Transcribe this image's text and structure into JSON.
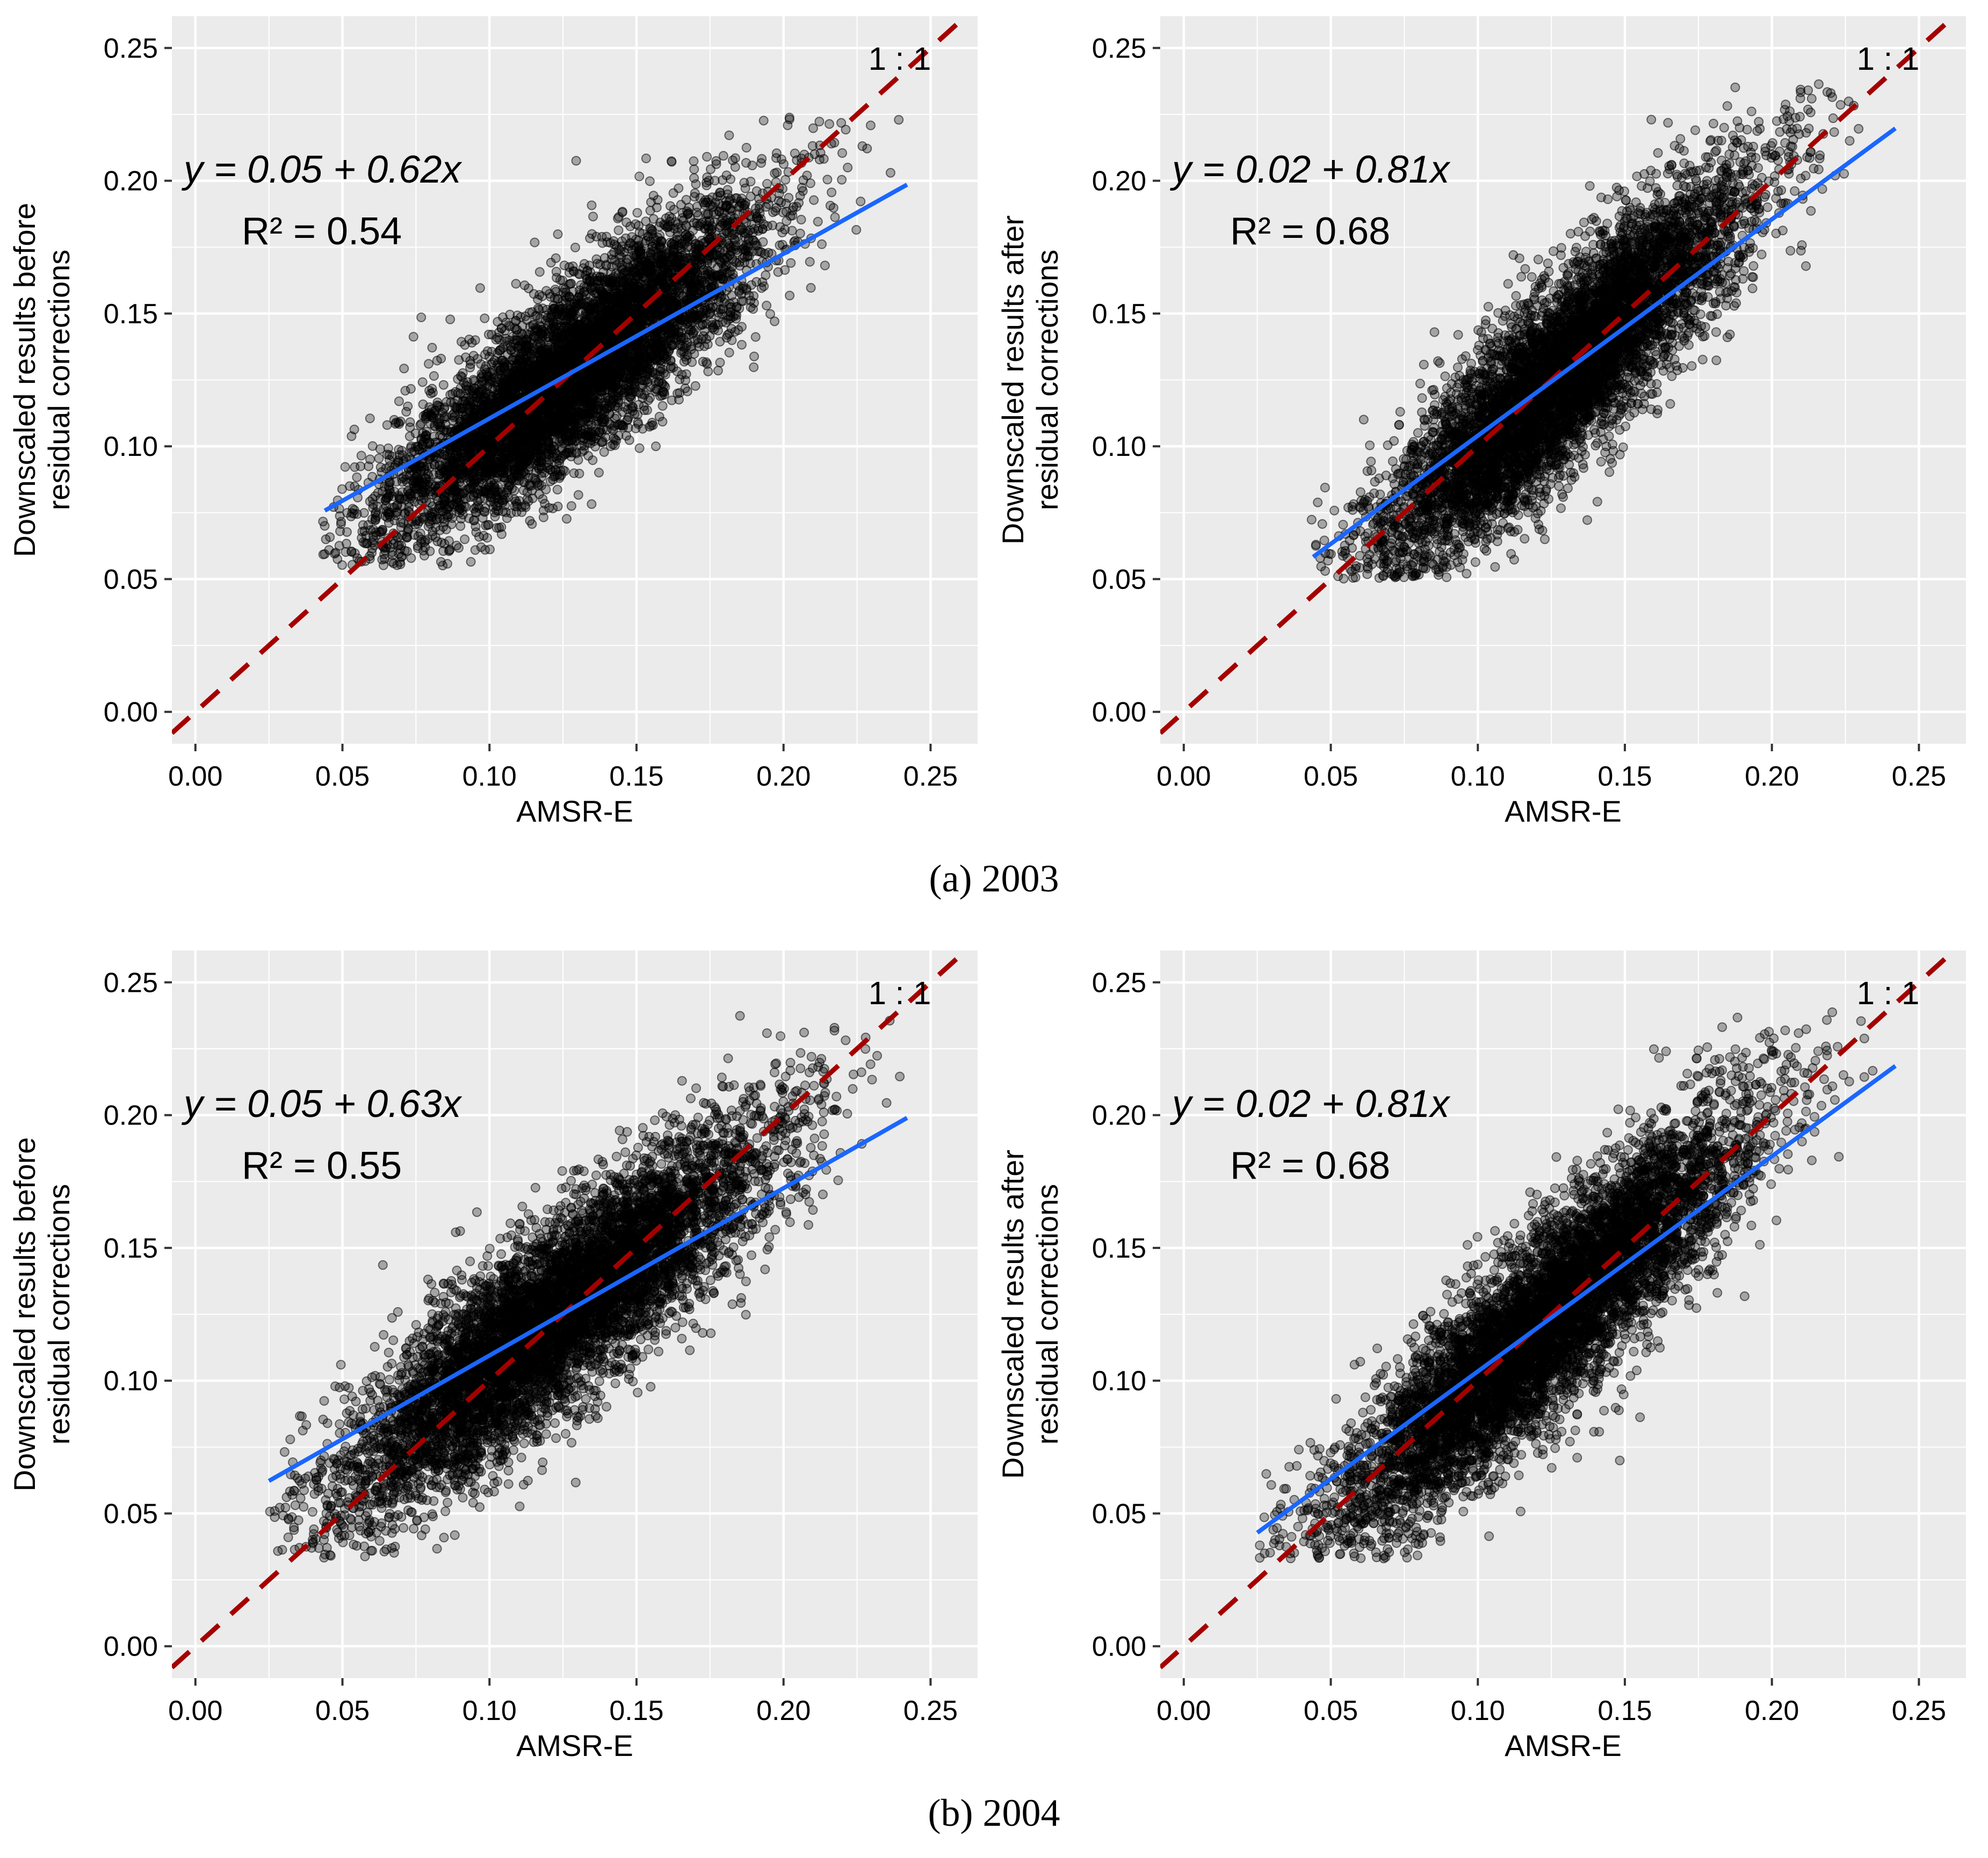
{
  "figure": {
    "captions": [
      "(a) 2003",
      "(b) 2004"
    ]
  },
  "chart_data": [
    {
      "type": "scatter",
      "panel": "(a) 2003 left",
      "xlabel": "AMSR-E",
      "ylabel": [
        "Downscaled results before",
        "residual corrections"
      ],
      "xlim": [
        -0.008,
        0.266
      ],
      "ylim": [
        -0.012,
        0.262
      ],
      "xticks": [
        0.0,
        0.05,
        0.1,
        0.15,
        0.2,
        0.25
      ],
      "yticks": [
        0.0,
        0.05,
        0.1,
        0.15,
        0.2,
        0.25
      ],
      "tick_labels": [
        "0.00",
        "0.05",
        "0.10",
        "0.15",
        "0.20",
        "0.25"
      ],
      "equation": "y = 0.05 + 0.62x",
      "r2": "R² = 0.54",
      "identity_label": "1 : 1",
      "fit": {
        "intercept": 0.0485,
        "slope": 0.62,
        "x_range": [
          0.044,
          0.242
        ]
      },
      "cloud": {
        "x_mean": 0.128,
        "x_sd": 0.032,
        "resid_sd": 0.017,
        "x_min": 0.043,
        "x_max": 0.243,
        "y_min": 0.055,
        "y_max": 0.225
      },
      "point_count": 6500,
      "seed": 11,
      "colors": {
        "fit": "#1a66ff",
        "identity": "#a50000",
        "points": "rgba(0,0,0,0.3)",
        "panel": "#ebebeb"
      }
    },
    {
      "type": "scatter",
      "panel": "(a) 2003 right",
      "xlabel": "AMSR-E",
      "ylabel": [
        "Downscaled results after",
        "residual corrections"
      ],
      "xlim": [
        -0.008,
        0.266
      ],
      "ylim": [
        -0.012,
        0.262
      ],
      "xticks": [
        0.0,
        0.05,
        0.1,
        0.15,
        0.2,
        0.25
      ],
      "yticks": [
        0.0,
        0.05,
        0.1,
        0.15,
        0.2,
        0.25
      ],
      "tick_labels": [
        "0.00",
        "0.05",
        "0.10",
        "0.15",
        "0.20",
        "0.25"
      ],
      "equation": "y = 0.02 + 0.81x",
      "r2": "R² = 0.68",
      "identity_label": "1 : 1",
      "fit": {
        "intercept": 0.0225,
        "slope": 0.815,
        "x_range": [
          0.044,
          0.242
        ]
      },
      "cloud": {
        "x_mean": 0.128,
        "x_sd": 0.032,
        "resid_sd": 0.018,
        "x_min": 0.043,
        "x_max": 0.243,
        "y_min": 0.05,
        "y_max": 0.238
      },
      "point_count": 6500,
      "seed": 23,
      "colors": {
        "fit": "#1a66ff",
        "identity": "#a50000",
        "points": "rgba(0,0,0,0.3)",
        "panel": "#ebebeb"
      }
    },
    {
      "type": "scatter",
      "panel": "(b) 2004 left",
      "xlabel": "AMSR-E",
      "ylabel": [
        "Downscaled results before",
        "residual corrections"
      ],
      "xlim": [
        -0.008,
        0.266
      ],
      "ylim": [
        -0.012,
        0.262
      ],
      "xticks": [
        0.0,
        0.05,
        0.1,
        0.15,
        0.2,
        0.25
      ],
      "yticks": [
        0.0,
        0.05,
        0.1,
        0.15,
        0.2,
        0.25
      ],
      "tick_labels": [
        "0.00",
        "0.05",
        "0.10",
        "0.15",
        "0.20",
        "0.25"
      ],
      "equation": "y = 0.05 + 0.63x",
      "r2": "R² = 0.55",
      "identity_label": "1 : 1",
      "fit": {
        "intercept": 0.0465,
        "slope": 0.63,
        "x_range": [
          0.025,
          0.242
        ]
      },
      "cloud": {
        "x_mean": 0.122,
        "x_sd": 0.036,
        "resid_sd": 0.018,
        "x_min": 0.025,
        "x_max": 0.243,
        "y_min": 0.033,
        "y_max": 0.24
      },
      "point_count": 7000,
      "seed": 37,
      "colors": {
        "fit": "#1a66ff",
        "identity": "#a50000",
        "points": "rgba(0,0,0,0.3)",
        "panel": "#ebebeb"
      }
    },
    {
      "type": "scatter",
      "panel": "(b) 2004 right",
      "xlabel": "AMSR-E",
      "ylabel": [
        "Downscaled results after",
        "residual corrections"
      ],
      "xlim": [
        -0.008,
        0.266
      ],
      "ylim": [
        -0.012,
        0.262
      ],
      "xticks": [
        0.0,
        0.05,
        0.1,
        0.15,
        0.2,
        0.25
      ],
      "yticks": [
        0.0,
        0.05,
        0.1,
        0.15,
        0.2,
        0.25
      ],
      "tick_labels": [
        "0.00",
        "0.05",
        "0.10",
        "0.15",
        "0.20",
        "0.25"
      ],
      "equation": "y = 0.02 + 0.81x",
      "r2": "R² = 0.68",
      "identity_label": "1 : 1",
      "fit": {
        "intercept": 0.0225,
        "slope": 0.81,
        "x_range": [
          0.025,
          0.242
        ]
      },
      "cloud": {
        "x_mean": 0.122,
        "x_sd": 0.036,
        "resid_sd": 0.018,
        "x_min": 0.025,
        "x_max": 0.243,
        "y_min": 0.033,
        "y_max": 0.24
      },
      "point_count": 7000,
      "seed": 53,
      "colors": {
        "fit": "#1a66ff",
        "identity": "#a50000",
        "points": "rgba(0,0,0,0.3)",
        "panel": "#ebebeb"
      }
    }
  ]
}
